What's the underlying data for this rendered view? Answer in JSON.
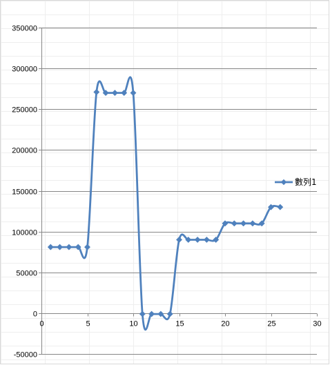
{
  "chart_data": {
    "type": "line",
    "title": "",
    "xlabel": "",
    "ylabel": "",
    "xlim": [
      0,
      30
    ],
    "ylim": [
      -50000,
      350000
    ],
    "x_ticks": [
      0,
      5,
      10,
      15,
      20,
      25,
      30
    ],
    "y_ticks": [
      -50000,
      0,
      50000,
      100000,
      150000,
      200000,
      250000,
      300000,
      350000
    ],
    "x_tick_labels": [
      "0",
      "5",
      "10",
      "15",
      "20",
      "25",
      "30"
    ],
    "y_tick_labels": [
      "-50000",
      "0",
      "50000",
      "100000",
      "150000",
      "200000",
      "250000",
      "300000",
      "350000"
    ],
    "grid": true,
    "legend_position": "right",
    "series": [
      {
        "name": "數列1",
        "color": "#4f81bd",
        "marker": "diamond",
        "smooth": true,
        "x": [
          1,
          2,
          3,
          4,
          5,
          6,
          7,
          8,
          9,
          10,
          11,
          12,
          13,
          14,
          15,
          16,
          17,
          18,
          19,
          20,
          21,
          22,
          23,
          24,
          25,
          26
        ],
        "y": [
          81000,
          81000,
          81000,
          81000,
          81000,
          271000,
          270000,
          270000,
          270000,
          270000,
          -1000,
          -1000,
          -1000,
          -1000,
          90000,
          90000,
          90000,
          90000,
          90000,
          110000,
          110000,
          110000,
          110000,
          110000,
          130000,
          130000
        ]
      }
    ]
  }
}
